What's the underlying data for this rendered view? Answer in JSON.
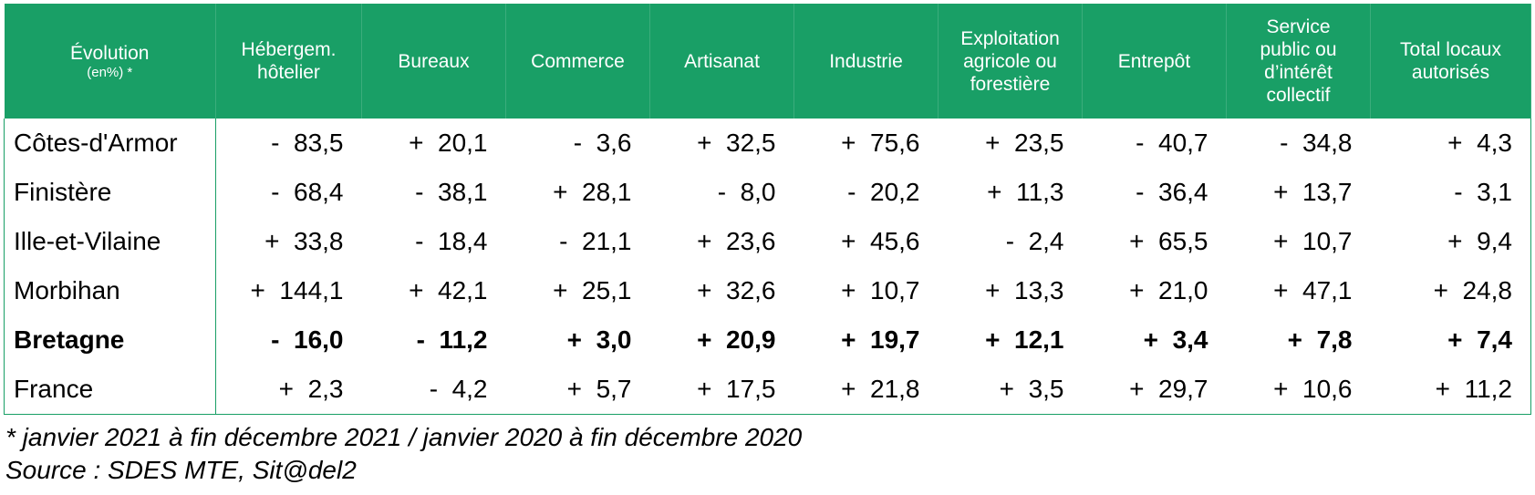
{
  "header": {
    "label_title": "Évolution",
    "label_sub": "(en%) *",
    "columns": [
      [
        "Hébergem.",
        "hôtelier"
      ],
      [
        "Bureaux"
      ],
      [
        "Commerce"
      ],
      [
        "Artisanat"
      ],
      [
        "Industrie"
      ],
      [
        "Exploitation",
        "agricole ou",
        "forestière"
      ],
      [
        "Entrepôt"
      ],
      [
        "Service",
        "public ou",
        "d’intérêt",
        "collectif"
      ],
      [
        "Total locaux",
        "autorisés"
      ]
    ]
  },
  "rows": [
    {
      "label": "Côtes-d'Armor",
      "bold": false,
      "values": [
        "-  83,5",
        "+  20,1",
        "-  3,6",
        "+  32,5",
        "+  75,6",
        "+  23,5",
        "-  40,7",
        "-  34,8",
        "+  4,3"
      ]
    },
    {
      "label": "Finistère",
      "bold": false,
      "values": [
        "-  68,4",
        "-  38,1",
        "+  28,1",
        "-  8,0",
        "-  20,2",
        "+  11,3",
        "-  36,4",
        "+  13,7",
        "-  3,1"
      ]
    },
    {
      "label": "Ille-et-Vilaine",
      "bold": false,
      "values": [
        "+  33,8",
        "-  18,4",
        "-  21,1",
        "+  23,6",
        "+  45,6",
        "-  2,4",
        "+  65,5",
        "+  10,7",
        "+  9,4"
      ]
    },
    {
      "label": "Morbihan",
      "bold": false,
      "values": [
        "+  144,1",
        "+  42,1",
        "+  25,1",
        "+  32,6",
        "+  10,7",
        "+  13,3",
        "+  21,0",
        "+  47,1",
        "+  24,8"
      ]
    },
    {
      "label": "Bretagne",
      "bold": true,
      "values": [
        "-  16,0",
        "-  11,2",
        "+  3,0",
        "+  20,9",
        "+  19,7",
        "+  12,1",
        "+  3,4",
        "+  7,8",
        "+  7,4"
      ]
    },
    {
      "label": "France",
      "bold": false,
      "values": [
        "+  2,3",
        "-  4,2",
        "+  5,7",
        "+  17,5",
        "+  21,8",
        "+  3,5",
        "+  29,7",
        "+  10,6",
        "+  11,2"
      ]
    }
  ],
  "notes": {
    "period": "* janvier 2021 à fin décembre 2021 / janvier 2020 à fin décembre 2020",
    "source": "Source : SDES MTE, Sit@del2"
  },
  "colors": {
    "header_bg": "#199f66",
    "header_text": "#ffffff"
  }
}
